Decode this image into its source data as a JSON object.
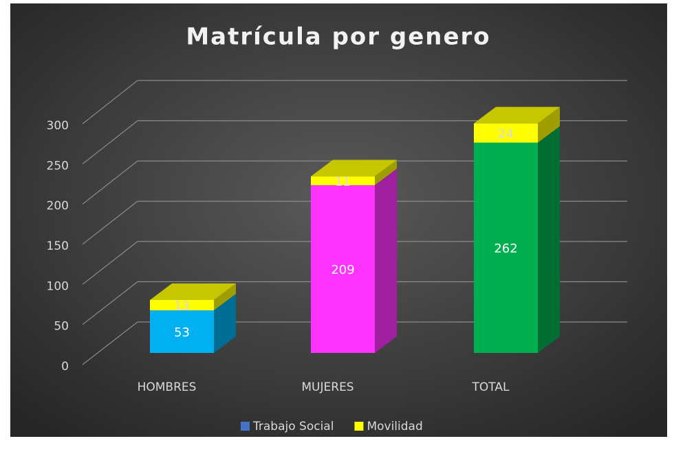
{
  "chart_data": {
    "type": "bar3d_stacked",
    "title": "Matrícula por genero",
    "categories": [
      "HOMBRES",
      "MUJERES",
      "TOTAL"
    ],
    "series": [
      {
        "name": "Trabajo Social",
        "color": "#4472c4",
        "point_colors": [
          "#00b0f0",
          "#ff33ff",
          "#00b050"
        ],
        "values": [
          53,
          209,
          262
        ]
      },
      {
        "name": "Movilidad",
        "color": "#ffff00",
        "values": [
          13,
          11,
          24
        ]
      }
    ],
    "ylim": [
      0,
      300
    ],
    "yticks": [
      0,
      50,
      100,
      150,
      200,
      250,
      300
    ],
    "grid": true,
    "legend": "bottom"
  }
}
